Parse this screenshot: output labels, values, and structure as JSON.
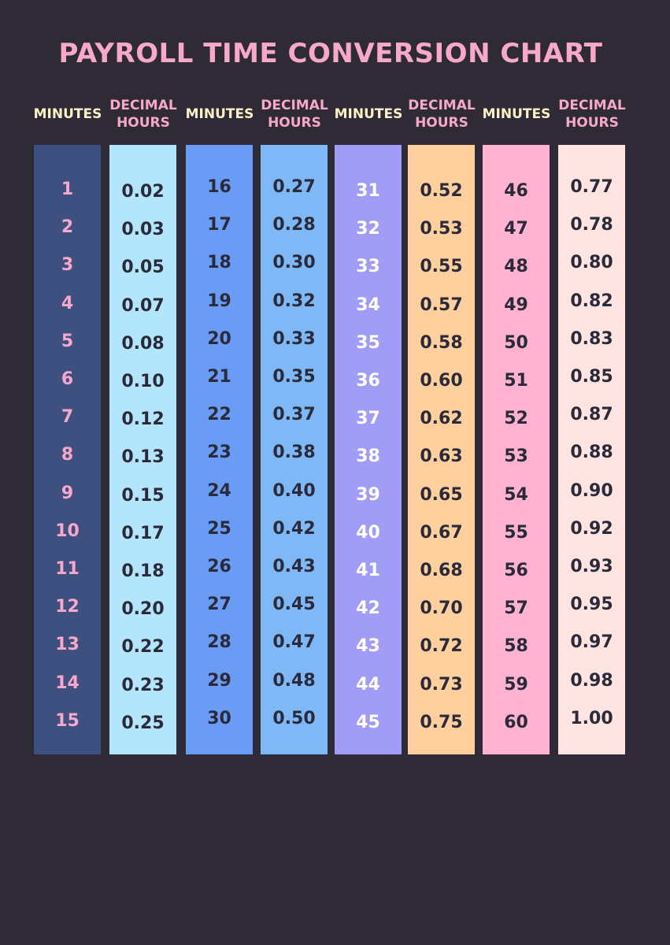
{
  "title": "PAYROLL TIME CONVERSION CHART",
  "groups": [
    {
      "minutes_header": "MINUTES",
      "decimal_header": "DECIMAL HOURS",
      "minutes": [
        "1",
        "2",
        "3",
        "4",
        "5",
        "6",
        "7",
        "8",
        "9",
        "10",
        "11",
        "12",
        "13",
        "14",
        "15"
      ],
      "decimal": [
        "0.02",
        "0.03",
        "0.05",
        "0.07",
        "0.08",
        "0.10",
        "0.12",
        "0.13",
        "0.15",
        "0.17",
        "0.18",
        "0.20",
        "0.22",
        "0.23",
        "0.25"
      ]
    },
    {
      "minutes_header": "MINUTES",
      "decimal_header": "DECIMAL HOURS",
      "minutes": [
        "16",
        "17",
        "18",
        "19",
        "20",
        "21",
        "22",
        "23",
        "24",
        "25",
        "26",
        "27",
        "28",
        "29",
        "30"
      ],
      "decimal": [
        "0.27",
        "0.28",
        "0.30",
        "0.32",
        "0.33",
        "0.35",
        "0.37",
        "0.38",
        "0.40",
        "0.42",
        "0.43",
        "0.45",
        "0.47",
        "0.48",
        "0.50"
      ]
    },
    {
      "minutes_header": "MINUTES",
      "decimal_header": "DECIMAL HOURS",
      "minutes": [
        "31",
        "32",
        "33",
        "34",
        "35",
        "36",
        "37",
        "38",
        "39",
        "40",
        "41",
        "42",
        "43",
        "44",
        "45"
      ],
      "decimal": [
        "0.52",
        "0.53",
        "0.55",
        "0.57",
        "0.58",
        "0.60",
        "0.62",
        "0.63",
        "0.65",
        "0.67",
        "0.68",
        "0.70",
        "0.72",
        "0.73",
        "0.75"
      ]
    },
    {
      "minutes_header": "MINUTES",
      "decimal_header": "DECIMAL HOURS",
      "minutes": [
        "46",
        "47",
        "48",
        "49",
        "50",
        "51",
        "52",
        "53",
        "54",
        "55",
        "56",
        "57",
        "58",
        "59",
        "60"
      ],
      "decimal": [
        "0.77",
        "0.78",
        "0.80",
        "0.82",
        "0.83",
        "0.85",
        "0.87",
        "0.88",
        "0.90",
        "0.92",
        "0.93",
        "0.95",
        "0.97",
        "0.98",
        "1.00"
      ]
    }
  ]
}
